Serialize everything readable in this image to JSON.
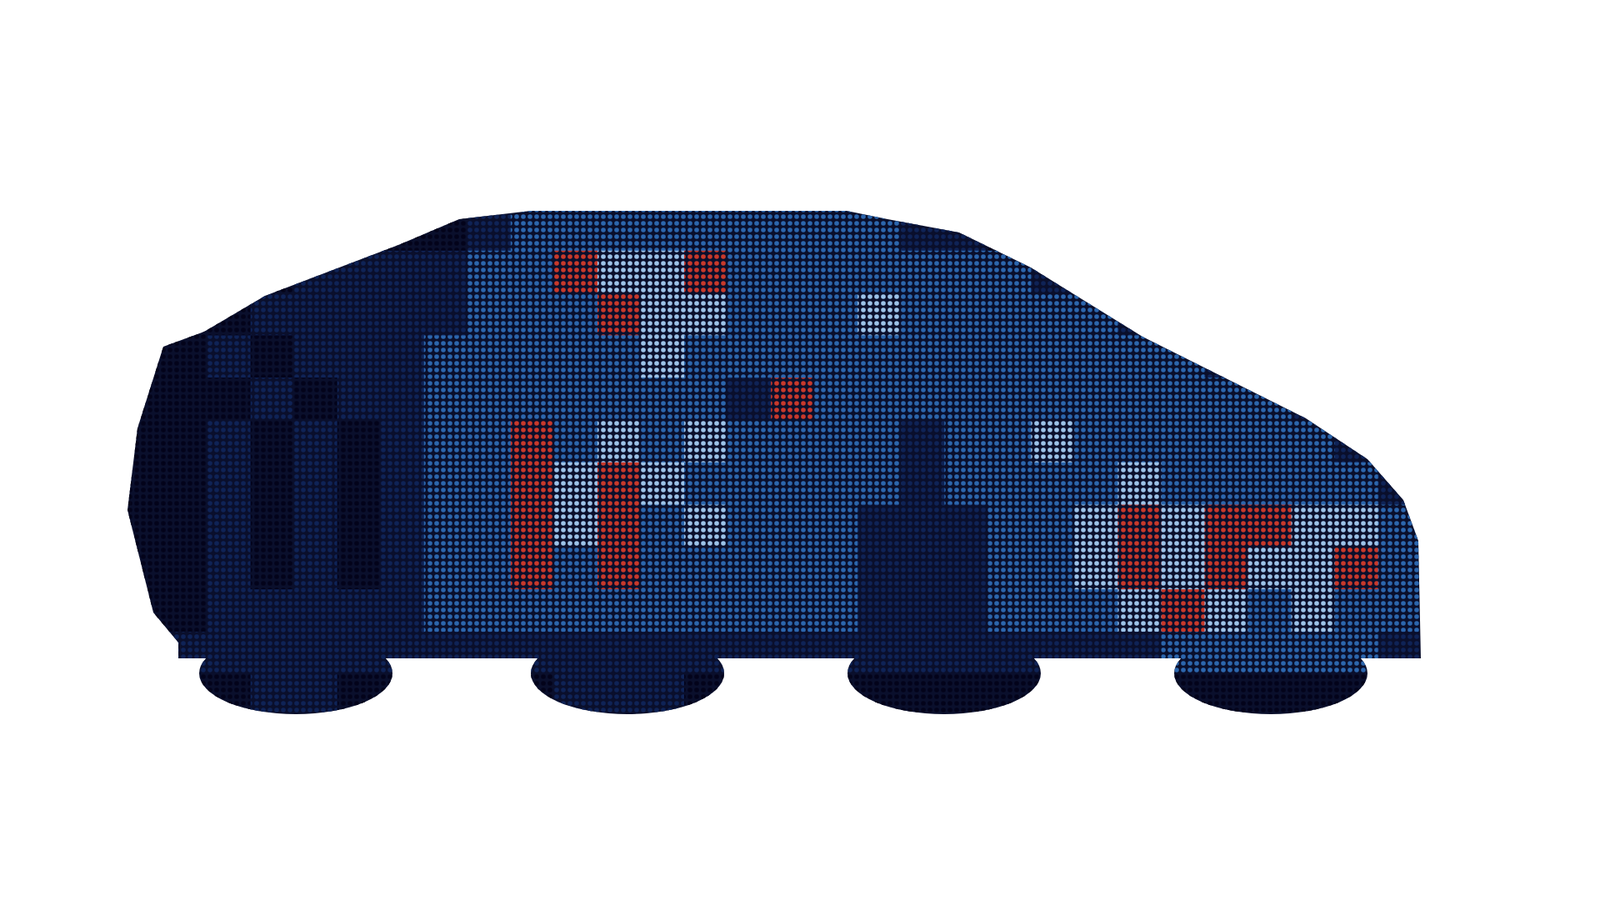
{
  "chart_data": {
    "type": "heatmap",
    "tick_labels": false,
    "zlim": [
      0,
      4
    ],
    "cells": [
      [
        0,
        0,
        0,
        0,
        0,
        0,
        0,
        0,
        1,
        2,
        2,
        2,
        2,
        2,
        2,
        2,
        2,
        2,
        1,
        1,
        0,
        0,
        0,
        0,
        0,
        0,
        0,
        0,
        0,
        0
      ],
      [
        0,
        0,
        0,
        0,
        1,
        1,
        1,
        1,
        2,
        2,
        4,
        3,
        3,
        4,
        2,
        2,
        2,
        2,
        2,
        2,
        2,
        1,
        0,
        0,
        0,
        0,
        0,
        0,
        0,
        0
      ],
      [
        0,
        0,
        0,
        1,
        1,
        1,
        1,
        1,
        2,
        2,
        2,
        4,
        3,
        3,
        2,
        2,
        2,
        3,
        2,
        2,
        2,
        2,
        2,
        1,
        0,
        0,
        0,
        0,
        0,
        0
      ],
      [
        0,
        0,
        1,
        0,
        1,
        1,
        1,
        2,
        2,
        2,
        2,
        2,
        3,
        2,
        2,
        2,
        2,
        2,
        2,
        2,
        2,
        2,
        2,
        2,
        2,
        1,
        0,
        0,
        0,
        0
      ],
      [
        0,
        0,
        0,
        1,
        0,
        1,
        1,
        2,
        2,
        2,
        2,
        2,
        2,
        2,
        1,
        4,
        2,
        2,
        2,
        2,
        2,
        2,
        2,
        2,
        2,
        2,
        2,
        1,
        0,
        0
      ],
      [
        0,
        0,
        1,
        0,
        1,
        0,
        1,
        2,
        2,
        4,
        2,
        3,
        2,
        3,
        2,
        2,
        2,
        2,
        1,
        2,
        2,
        3,
        2,
        2,
        2,
        2,
        2,
        2,
        1,
        0
      ],
      [
        0,
        0,
        1,
        0,
        1,
        0,
        1,
        2,
        2,
        4,
        3,
        4,
        3,
        2,
        2,
        2,
        2,
        2,
        1,
        2,
        2,
        2,
        2,
        3,
        2,
        2,
        2,
        2,
        2,
        1
      ],
      [
        0,
        0,
        1,
        0,
        1,
        0,
        1,
        2,
        2,
        4,
        3,
        4,
        2,
        3,
        2,
        2,
        2,
        1,
        1,
        1,
        2,
        2,
        3,
        4,
        3,
        4,
        4,
        3,
        3,
        2
      ],
      [
        0,
        0,
        1,
        0,
        1,
        0,
        1,
        2,
        2,
        4,
        2,
        4,
        2,
        2,
        2,
        2,
        2,
        1,
        1,
        1,
        2,
        2,
        3,
        4,
        3,
        4,
        3,
        3,
        4,
        2
      ],
      [
        0,
        0,
        1,
        1,
        1,
        1,
        1,
        2,
        2,
        2,
        2,
        2,
        2,
        2,
        2,
        2,
        2,
        1,
        1,
        1,
        2,
        2,
        2,
        3,
        4,
        3,
        2,
        3,
        2,
        2
      ],
      [
        0,
        1,
        1,
        1,
        1,
        1,
        1,
        1,
        1,
        1,
        1,
        1,
        1,
        1,
        1,
        1,
        1,
        1,
        1,
        1,
        1,
        1,
        1,
        1,
        2,
        2,
        2,
        2,
        2,
        1
      ],
      [
        0,
        0,
        0,
        1,
        1,
        0,
        0,
        0,
        0,
        0,
        1,
        1,
        1,
        0,
        0,
        0,
        0,
        0,
        0,
        0,
        0,
        0,
        0,
        0,
        0,
        0,
        0,
        0,
        0,
        0
      ]
    ]
  }
}
